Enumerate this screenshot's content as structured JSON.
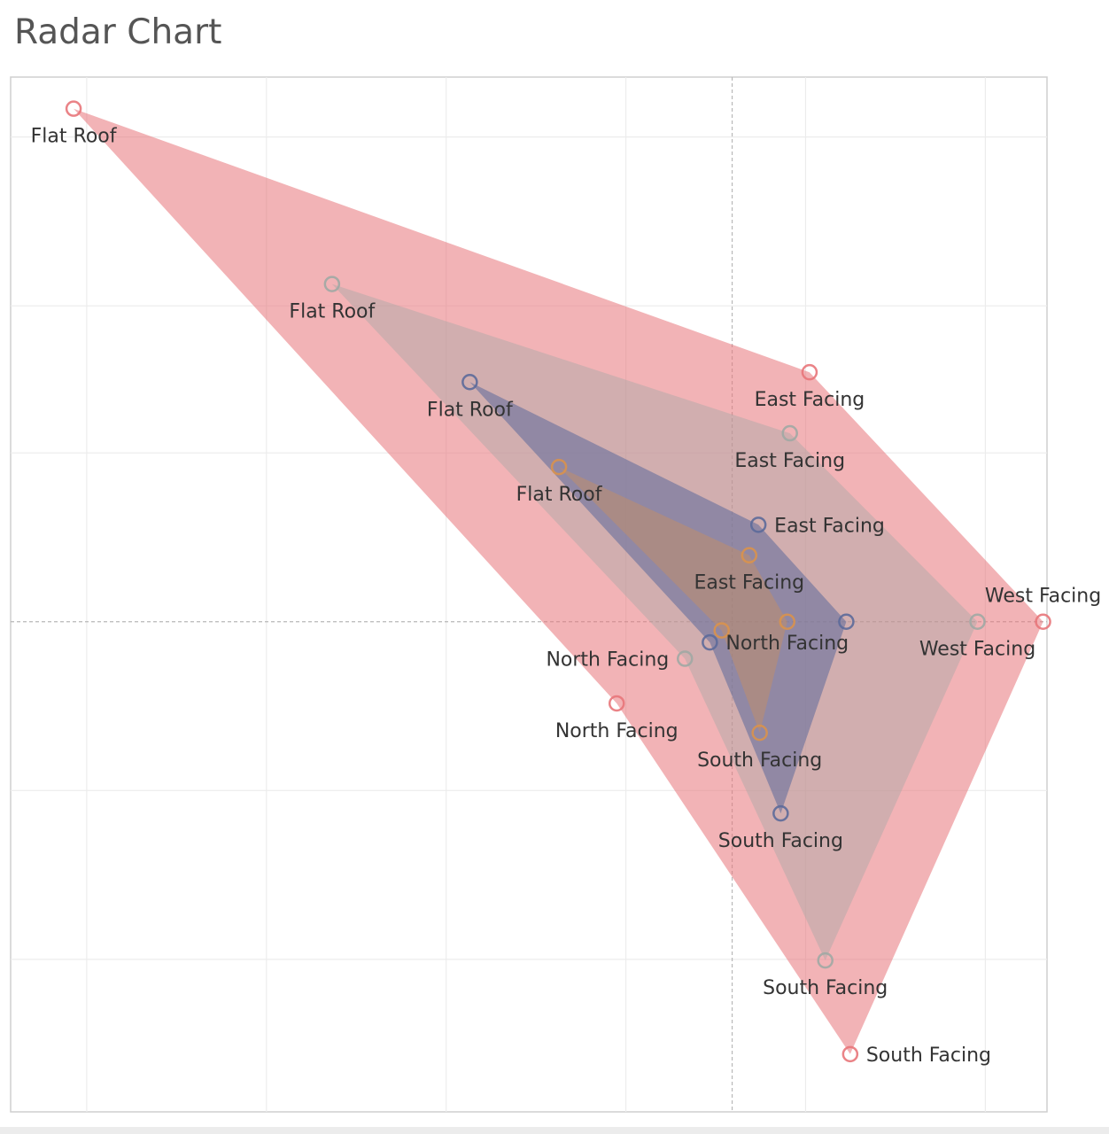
{
  "title": "Radar Chart",
  "chart_data": {
    "type": "radar",
    "title": "Radar Chart",
    "grid": true,
    "series": [
      {
        "color": "#e8757a",
        "fill_opacity": 0.55,
        "points": [
          {
            "label": "Flat Roof",
            "x": -5.02,
            "y": 4.71
          },
          {
            "label": "East Facing",
            "x": 0.59,
            "y": 2.29
          },
          {
            "label": "West Facing",
            "x": 2.37,
            "y": 0.0
          },
          {
            "label": "South Facing",
            "x": 0.9,
            "y": -3.97
          },
          {
            "label": "North Facing",
            "x": -0.88,
            "y": -0.75
          }
        ]
      },
      {
        "color": "#a0a8a4",
        "fill_opacity": 0.4,
        "points": [
          {
            "label": "Flat Roof",
            "x": -3.05,
            "y": 3.1
          },
          {
            "label": "East Facing",
            "x": 0.44,
            "y": 1.73
          },
          {
            "label": "West Facing",
            "x": 1.87,
            "y": 0.0
          },
          {
            "label": "South Facing",
            "x": 0.71,
            "y": -3.11
          },
          {
            "label": "North Facing",
            "x": -0.36,
            "y": -0.34
          }
        ]
      },
      {
        "color": "#5c6a9a",
        "fill_opacity": 0.55,
        "points": [
          {
            "label": "Flat Roof",
            "x": -2.0,
            "y": 2.2
          },
          {
            "label": "East Facing",
            "x": 0.2,
            "y": 0.89
          },
          {
            "label": "West Facing",
            "x": 0.87,
            "y": 0.0
          },
          {
            "label": "South Facing",
            "x": 0.37,
            "y": -1.76
          },
          {
            "label": "North Facing",
            "x": -0.17,
            "y": -0.19
          }
        ]
      },
      {
        "color": "#d9924c",
        "fill_opacity": 0.35,
        "points": [
          {
            "label": "Flat Roof",
            "x": -1.32,
            "y": 1.42
          },
          {
            "label": "East Facing",
            "x": 0.13,
            "y": 0.61
          },
          {
            "label": "West Facing",
            "x": 0.42,
            "y": 0.0
          },
          {
            "label": "South Facing",
            "x": 0.21,
            "y": -1.02
          },
          {
            "label": "North Facing",
            "x": -0.08,
            "y": -0.08
          }
        ]
      }
    ],
    "label_placement": [
      [
        "below",
        "below",
        "above",
        "right",
        "below"
      ],
      [
        "below",
        "below",
        "below",
        "below",
        "left"
      ],
      [
        "below",
        "right",
        "none",
        "below",
        "right"
      ],
      [
        "below",
        "below",
        "none",
        "below",
        "none"
      ]
    ],
    "xlim": [
      -5.5,
      2.4
    ],
    "ylim": [
      -4.5,
      5.0
    ],
    "x_gridlines": [
      -4.92,
      -3.55,
      -2.18,
      -0.81,
      0.56,
      1.93
    ],
    "y_gridlines": [
      4.45,
      2.9,
      1.55,
      -1.55,
      -3.1
    ],
    "reference_lines": {
      "x": 0,
      "y": 0
    }
  }
}
